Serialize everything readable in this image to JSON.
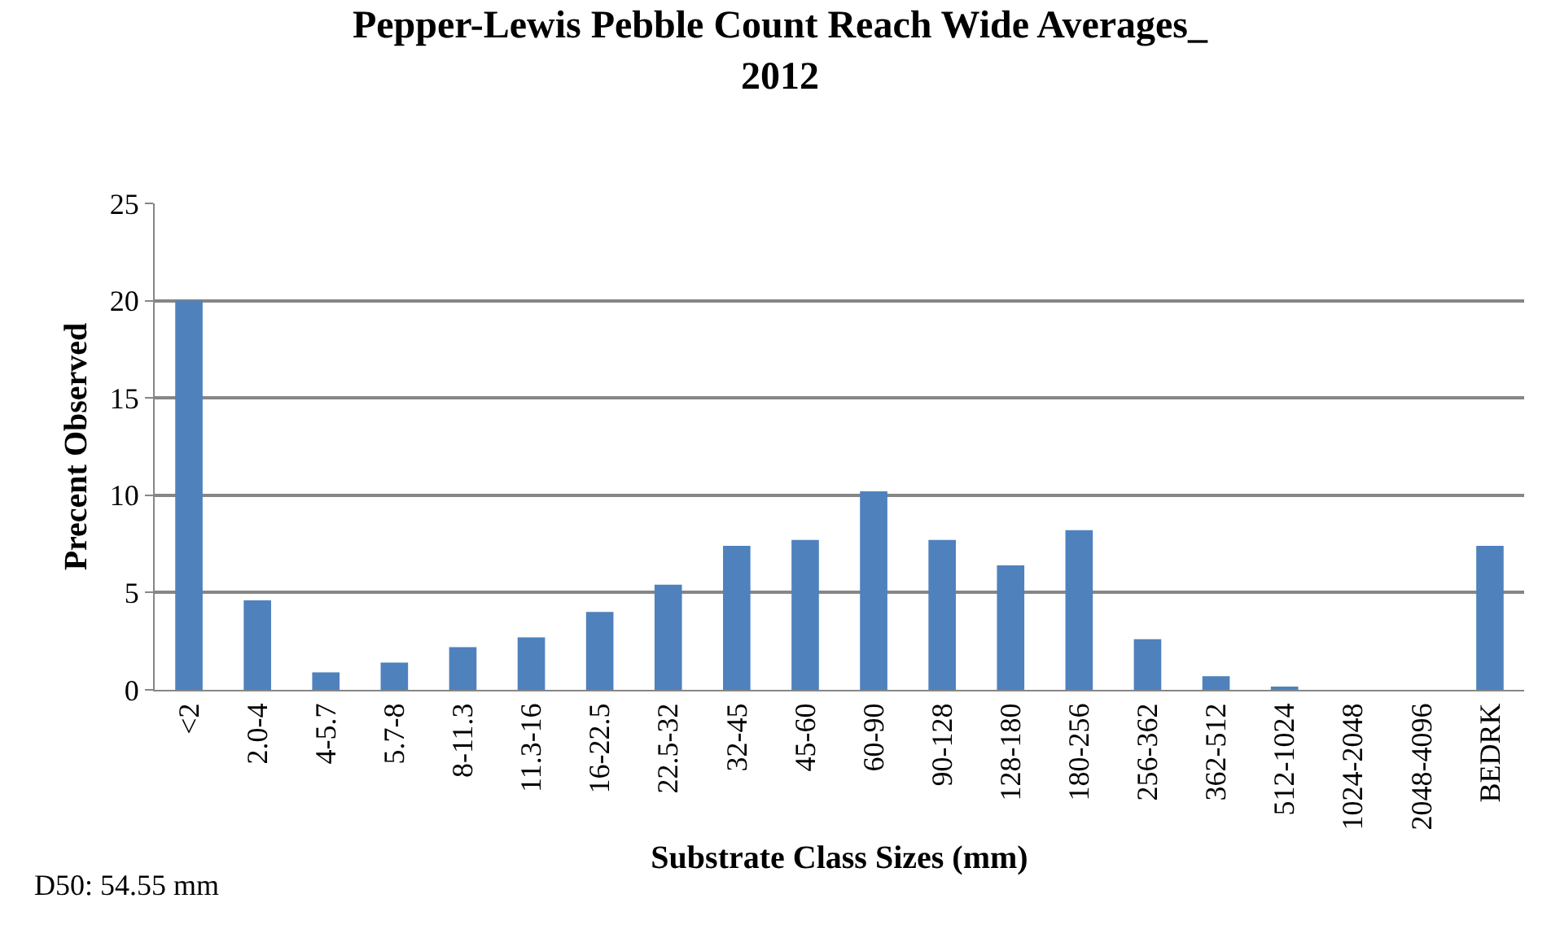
{
  "chart_data": {
    "type": "bar",
    "title": "Pepper-Lewis Pebble Count Reach Wide Averages_\n2012",
    "xlabel": "Substrate Class Sizes (mm)",
    "ylabel": "Precent Observed",
    "categories": [
      "<2",
      "2.0-4",
      "4-5.7",
      "5.7-8",
      "8-11.3",
      "11.3-16",
      "16-22.5",
      "22.5-32",
      "32-45",
      "45-60",
      "60-90",
      "90-128",
      "128-180",
      "180-256",
      "256-362",
      "362-512",
      "512-1024",
      "1024-2048",
      "2048-4096",
      "BEDRK"
    ],
    "values": [
      20,
      4.6,
      0.9,
      1.4,
      2.2,
      2.7,
      4.0,
      5.4,
      7.4,
      7.7,
      10.2,
      7.7,
      6.4,
      8.2,
      2.6,
      0.7,
      0.1,
      0,
      0,
      7.4
    ],
    "color": "#4f81bd",
    "ylim": [
      0,
      25
    ],
    "yticks": [
      0,
      5,
      10,
      15,
      20,
      25
    ],
    "grid": "y",
    "annotations": [
      "D50: 54.55 mm"
    ]
  }
}
